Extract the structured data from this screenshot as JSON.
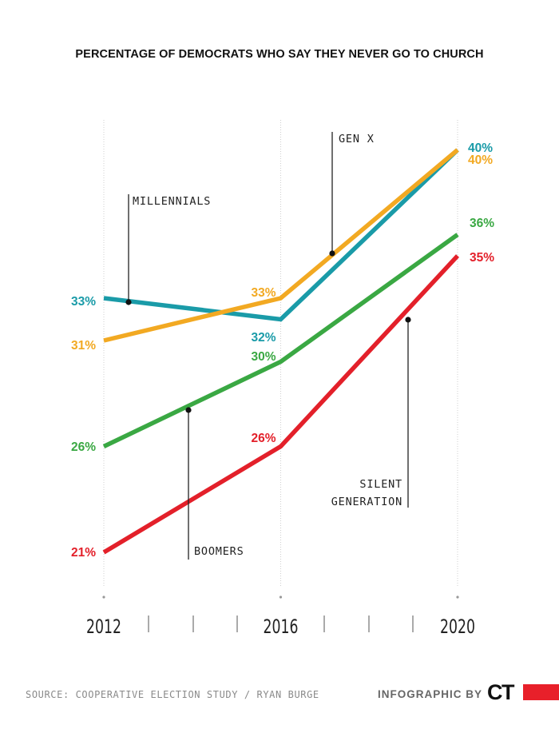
{
  "title": "PERCENTAGE OF DEMOCRATS WHO SAY THEY NEVER GO TO CHURCH",
  "footer": {
    "source": "SOURCE: COOPERATIVE ELECTION STUDY / RYAN BURGE",
    "credit": "INFOGRAPHIC BY",
    "logo": "CT"
  },
  "colors": {
    "millennials": "#1a9ba8",
    "genx": "#f2a922",
    "boomers": "#3aa843",
    "silent": "#e3202a"
  },
  "chart_data": {
    "type": "line",
    "title": "PERCENTAGE OF DEMOCRATS WHO SAY THEY NEVER GO TO CHURCH",
    "x": [
      2012,
      2016,
      2020
    ],
    "x_tick_labels": [
      "2012",
      "2016",
      "2020"
    ],
    "ylim": [
      19,
      44
    ],
    "grid": "vertical",
    "series": [
      {
        "name": "MILLENNIALS",
        "key": "millennials",
        "values": [
          33,
          32,
          40
        ],
        "labels": [
          "33%",
          "32%",
          "40%"
        ]
      },
      {
        "name": "GEN X",
        "key": "genx",
        "values": [
          31,
          33,
          40
        ],
        "labels": [
          "31%",
          "33%",
          "40%"
        ]
      },
      {
        "name": "BOOMERS",
        "key": "boomers",
        "values": [
          26,
          30,
          36
        ],
        "labels": [
          "26%",
          "30%",
          "36%"
        ]
      },
      {
        "name": "SILENT GENERATION",
        "key": "silent",
        "values": [
          21,
          26,
          35
        ],
        "labels": [
          "21%",
          "26%",
          "35%"
        ]
      }
    ]
  }
}
